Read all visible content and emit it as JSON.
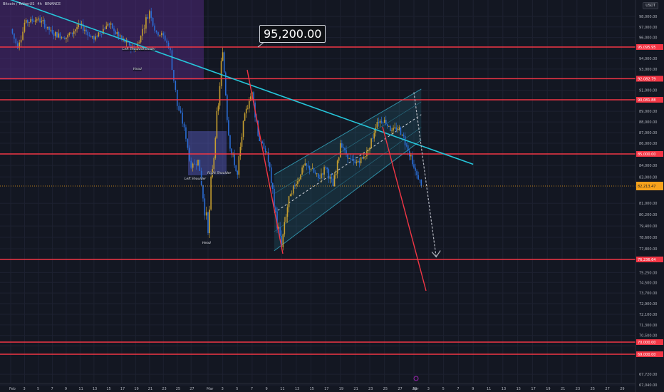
{
  "header": {
    "symbol_text": "Bitcoin / TetherUS",
    "interval": "4h",
    "exchange": "BINANCE",
    "currency": "USDT"
  },
  "callout": {
    "text": "95,200.00"
  },
  "pattern_labels": {
    "left_shoulder_1": "Left Shoulder",
    "right_shoulder_1": "Shoulder",
    "head_1": "Head",
    "left_shoulder_2": "Left Shoulder",
    "right_shoulder_2": "Right Shoulder",
    "head_2": "Head"
  },
  "colors": {
    "background": "#131722",
    "up_candle": "#c8a030",
    "down_candle": "#2a6dd6",
    "horizontal_level": "#f23645",
    "trendline": "#26c6da",
    "channel": "#2f8fa6",
    "projection_arrow": "#b2b5be",
    "current_price": "#f7a21b"
  },
  "chart_data": {
    "type": "line",
    "title": "",
    "xlabel": "",
    "ylabel": "",
    "x_tick_labels": [
      "Feb",
      "3",
      "5",
      "7",
      "9",
      "11",
      "13",
      "15",
      "17",
      "19",
      "21",
      "23",
      "25",
      "27",
      "Mar",
      "3",
      "5",
      "7",
      "9",
      "11",
      "13",
      "15",
      "17",
      "19",
      "21",
      "23",
      "25",
      "27",
      "29",
      "Apr",
      "3",
      "5",
      "7",
      "9",
      "11",
      "13",
      "15",
      "17",
      "19",
      "21",
      "23",
      "25",
      "27",
      "29"
    ],
    "y_tick_labels": [
      "98,000.00",
      "97,000.00",
      "96,000.00",
      "94,000.00",
      "93,000.00",
      "91,000.00",
      "89,000.00",
      "88,000.00",
      "87,000.00",
      "86,000.00",
      "84,000.00",
      "83,000.00",
      "81,000.00",
      "80,200.00",
      "79,400.00",
      "78,600.00",
      "77,800.00",
      "75,250.00",
      "74,500.00",
      "73,700.00",
      "72,900.00",
      "72,100.00",
      "71,300.00",
      "70,500.00",
      "69,700.00",
      "67,720.00",
      "67,040.00"
    ],
    "horizontal_levels": [
      95095.95,
      92082.79,
      90081.88,
      85000.0,
      76236.64,
      70000.0,
      69000.0
    ],
    "level_labels": [
      "95,095.95",
      "92,082.79",
      "90,081.88",
      "85,000.00",
      "76,236.64",
      "70,000.00",
      "69,000.00"
    ],
    "current_price": 82213.47,
    "current_price_label": "82,213.47",
    "annotation_price": 95200.0,
    "trendline": {
      "from": [
        "Jan 30",
        99800
      ],
      "to": [
        "Apr 9",
        84100
      ]
    },
    "ascending_channel": {
      "lower_from": [
        "Mar 10",
        77500
      ],
      "lower_to": [
        "Mar 30",
        86300
      ],
      "upper_from": [
        "Mar 10",
        83200
      ],
      "upper_to": [
        "Mar 30",
        91100
      ]
    },
    "projection_arrow": {
      "from": [
        "Mar 29",
        90800
      ],
      "to": [
        "Apr 4",
        76600
      ]
    },
    "price_series_approx": [
      [
        "Feb 1",
        96800
      ],
      [
        "Feb 2",
        95000
      ],
      [
        "Feb 3",
        97400
      ],
      [
        "Feb 5",
        97800
      ],
      [
        "Feb 7",
        96400
      ],
      [
        "Feb 9",
        96000
      ],
      [
        "Feb 11",
        97200
      ],
      [
        "Feb 13",
        95800
      ],
      [
        "Feb 15",
        97300
      ],
      [
        "Feb 17",
        95800
      ],
      [
        "Feb 19",
        94800
      ],
      [
        "Feb 20",
        96800
      ],
      [
        "Feb 21",
        98500
      ],
      [
        "Feb 22",
        96500
      ],
      [
        "Feb 23",
        96200
      ],
      [
        "Feb 24",
        94800
      ],
      [
        "Feb 25",
        89500
      ],
      [
        "Feb 26",
        87500
      ],
      [
        "Feb 27",
        83800
      ],
      [
        "Feb 28",
        84500
      ],
      [
        "Mar 1",
        78900
      ],
      [
        "Mar 2",
        86500
      ],
      [
        "Mar 3",
        94600
      ],
      [
        "Mar 4",
        85500
      ],
      [
        "Mar 5",
        83200
      ],
      [
        "Mar 6",
        88800
      ],
      [
        "Mar 7",
        90800
      ],
      [
        "Mar 8",
        86200
      ],
      [
        "Mar 9",
        85200
      ],
      [
        "Mar 10",
        80700
      ],
      [
        "Mar 11",
        77900
      ],
      [
        "Mar 12",
        81500
      ],
      [
        "Mar 13",
        82400
      ],
      [
        "Mar 14",
        84000
      ],
      [
        "Mar 15",
        83700
      ],
      [
        "Mar 16",
        82900
      ],
      [
        "Mar 17",
        83800
      ],
      [
        "Mar 18",
        82200
      ],
      [
        "Mar 19",
        86000
      ],
      [
        "Mar 20",
        84600
      ],
      [
        "Mar 21",
        84200
      ],
      [
        "Mar 22",
        84600
      ],
      [
        "Mar 23",
        85600
      ],
      [
        "Mar 24",
        88000
      ],
      [
        "Mar 25",
        88200
      ],
      [
        "Mar 26",
        87200
      ],
      [
        "Mar 27",
        87500
      ],
      [
        "Mar 28",
        85800
      ],
      [
        "Mar 29",
        83800
      ],
      [
        "Mar 30",
        82200
      ]
    ],
    "grid": true
  }
}
